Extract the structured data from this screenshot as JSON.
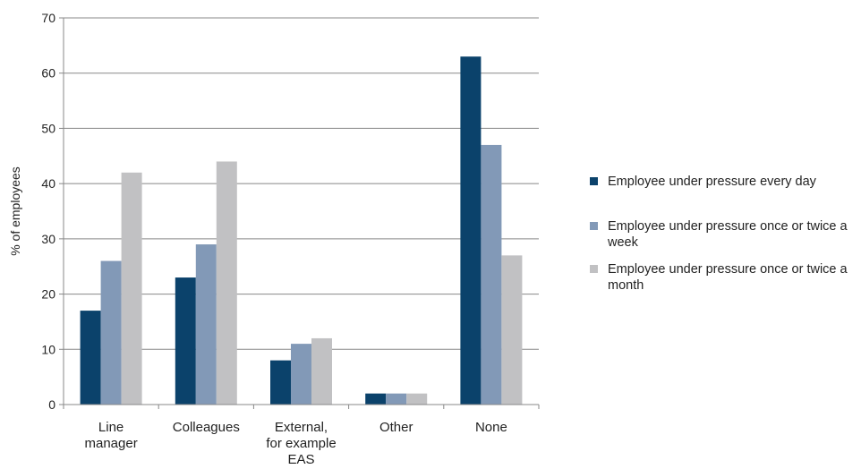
{
  "chart_data": {
    "type": "bar",
    "categories": [
      "Line manager",
      "Colleagues",
      "External, for example EAS",
      "Other",
      "None"
    ],
    "category_lines": [
      [
        "Line",
        "manager"
      ],
      [
        "Colleagues"
      ],
      [
        "External,",
        "for example",
        "EAS"
      ],
      [
        "Other"
      ],
      [
        "None"
      ]
    ],
    "series": [
      {
        "name": "Employee under pressure every day",
        "color": "#0b426b",
        "values": [
          17,
          23,
          8,
          2,
          63
        ]
      },
      {
        "name": "Employee under pressure once or twice a week",
        "color": "#8299b7",
        "values": [
          26,
          29,
          11,
          2,
          47
        ]
      },
      {
        "name": "Employee under pressure once or twice a month",
        "color": "#c1c1c3",
        "values": [
          42,
          44,
          12,
          2,
          27
        ]
      }
    ],
    "title": "",
    "xlabel": "",
    "ylabel": "% of employees",
    "ylim": [
      0,
      70
    ],
    "yticks": [
      0,
      10,
      20,
      30,
      40,
      50,
      60,
      70
    ],
    "grid": true,
    "legend_position": "right"
  }
}
